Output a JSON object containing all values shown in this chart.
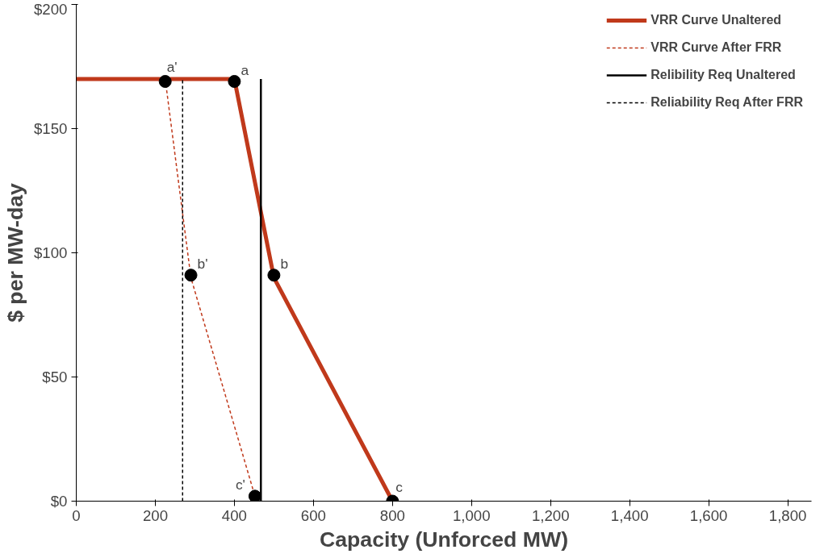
{
  "chart_data": {
    "type": "line",
    "xlabel": "Capacity (Unforced MW)",
    "ylabel": "$ per MW-day",
    "xlim": [
      0,
      1860
    ],
    "ylim": [
      0,
      200
    ],
    "xticks": [
      0,
      {
        "value": 200,
        "label": "200"
      },
      {
        "value": 400,
        "label": "400"
      },
      {
        "value": 600,
        "label": "600"
      },
      {
        "value": 800,
        "label": "800"
      },
      {
        "value": 1000,
        "label": "1,000"
      },
      {
        "value": 1200,
        "label": "1,200"
      },
      {
        "value": 1400,
        "label": "1,400"
      },
      {
        "value": 1600,
        "label": "1,600"
      },
      {
        "value": 1800,
        "label": "1,800"
      }
    ],
    "yticks": [
      {
        "value": 0,
        "label": "$0"
      },
      {
        "value": 50,
        "label": "$50"
      },
      {
        "value": 100,
        "label": "$100"
      },
      {
        "value": 150,
        "label": "$150"
      },
      {
        "value": 200,
        "label": "$200"
      }
    ],
    "grid": false,
    "legend": "top right",
    "series": [
      {
        "name": "VRR Curve Unaltered",
        "color": "#c0391b",
        "line_style": "solid",
        "x": [
          0,
          400,
          500,
          800
        ],
        "values": [
          170,
          170,
          90,
          0
        ]
      },
      {
        "name": "VRR Curve After FRR",
        "color": "#c0391b",
        "line_style": "dashed",
        "x": [
          225,
          290,
          452
        ],
        "values": [
          170,
          90,
          2
        ]
      },
      {
        "name": "Relibility Req Unaltered",
        "color": "#000000",
        "line_style": "solid",
        "x": [
          467,
          467
        ],
        "values": [
          0,
          170
        ]
      },
      {
        "name": "Reliability Req After FRR",
        "color": "#000000",
        "line_style": "dashed",
        "x": [
          269,
          269
        ],
        "values": [
          0,
          170
        ]
      },
      {
        "color": "#000000",
        "type": "scatter",
        "marker": "circle",
        "x": [
          225,
          400,
          290,
          500,
          452,
          800
        ],
        "values": [
          169,
          169,
          91,
          91,
          2,
          0
        ]
      }
    ],
    "annotations": [
      {
        "text": "a'",
        "x": 225,
        "y": 169
      },
      {
        "text": "a",
        "x": 400,
        "y": 169
      },
      {
        "text": "b'",
        "x": 290,
        "y": 91
      },
      {
        "text": "b",
        "x": 500,
        "y": 91
      },
      {
        "text": "c'",
        "x": 452,
        "y": 2
      },
      {
        "text": "c",
        "x": 800,
        "y": 0
      }
    ]
  }
}
